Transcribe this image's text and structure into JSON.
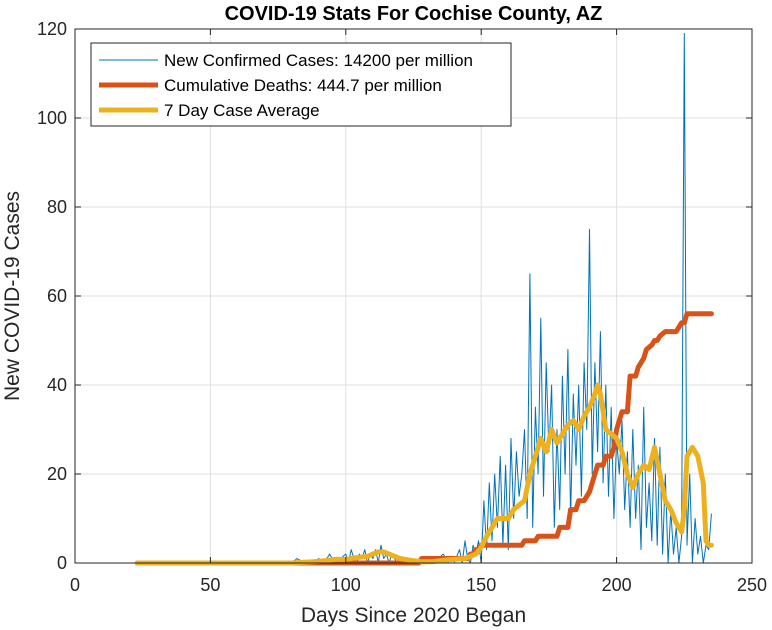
{
  "chart_data": {
    "type": "line",
    "title": "COVID-19 Stats For Cochise County, AZ",
    "xlabel": "Days Since 2020 Began",
    "ylabel": "New COVID-19 Cases",
    "xlim": [
      0,
      250
    ],
    "ylim": [
      0,
      120
    ],
    "xticks": [
      0,
      50,
      100,
      150,
      200,
      250
    ],
    "yticks": [
      0,
      20,
      40,
      60,
      80,
      100,
      120
    ],
    "grid": true,
    "legend_position": "top-left",
    "series": [
      {
        "name": "New Confirmed Cases: 14200 per million",
        "color": "#0072BD",
        "style": "thin",
        "x": [
          23,
          30,
          40,
          50,
          60,
          70,
          80,
          82,
          85,
          88,
          90,
          92,
          94,
          96,
          98,
          100,
          101,
          102,
          103,
          104,
          105,
          106,
          107,
          108,
          109,
          110,
          111,
          112,
          113,
          114,
          115,
          116,
          117,
          118,
          119,
          120,
          122,
          124,
          126,
          128,
          130,
          132,
          134,
          136,
          138,
          140,
          142,
          143,
          144,
          145,
          146,
          147,
          148,
          149,
          150,
          151,
          152,
          153,
          154,
          155,
          156,
          157,
          158,
          159,
          160,
          161,
          162,
          163,
          164,
          165,
          166,
          167,
          168,
          169,
          170,
          171,
          172,
          173,
          174,
          175,
          176,
          177,
          178,
          179,
          180,
          181,
          182,
          183,
          184,
          185,
          186,
          187,
          188,
          189,
          190,
          191,
          192,
          193,
          194,
          195,
          196,
          197,
          198,
          199,
          200,
          201,
          202,
          203,
          204,
          205,
          206,
          207,
          208,
          209,
          210,
          211,
          212,
          213,
          214,
          215,
          216,
          217,
          218,
          219,
          220,
          221,
          222,
          223,
          224,
          225,
          226,
          227,
          228,
          229,
          230,
          231,
          232,
          233,
          234,
          235
        ],
        "values": [
          0,
          0,
          0,
          0,
          0,
          0,
          0,
          1,
          0,
          0,
          1,
          0,
          2,
          0,
          1,
          2,
          0,
          3,
          1,
          0,
          2,
          1,
          3,
          0,
          2,
          1,
          3,
          0,
          4,
          1,
          2,
          0,
          2,
          1,
          0,
          1,
          0,
          1,
          0,
          0,
          1,
          0,
          1,
          2,
          0,
          0,
          3,
          0,
          5,
          1,
          0,
          4,
          2,
          5,
          0,
          14,
          3,
          18,
          5,
          20,
          8,
          24,
          4,
          22,
          3,
          28,
          10,
          25,
          15,
          20,
          30,
          10,
          65,
          8,
          35,
          20,
          55,
          15,
          45,
          25,
          40,
          8,
          30,
          12,
          42,
          20,
          48,
          10,
          38,
          22,
          40,
          15,
          45,
          30,
          75,
          20,
          45,
          25,
          52,
          18,
          40,
          15,
          35,
          10,
          28,
          20,
          32,
          12,
          25,
          8,
          30,
          10,
          22,
          3,
          35,
          8,
          18,
          5,
          28,
          4,
          26,
          2,
          20,
          0,
          12,
          2,
          8,
          0,
          6,
          119,
          4,
          20,
          0,
          10,
          2,
          6,
          0,
          4,
          3,
          11
        ],
        "width": 1
      },
      {
        "name": "Cumulative Deaths: 444.7 per million",
        "color": "#D95319",
        "style": "thick",
        "x": [
          23,
          127,
          128,
          145,
          146,
          147,
          148,
          149,
          150,
          155,
          156,
          165,
          166,
          170,
          171,
          178,
          179,
          182,
          183,
          185,
          186,
          188,
          190,
          192,
          193,
          195,
          196,
          198,
          199,
          200,
          202,
          204,
          205,
          207,
          208,
          210,
          211,
          213,
          214,
          215,
          216,
          218,
          219,
          220,
          222,
          224,
          225,
          226,
          235
        ],
        "values": [
          0,
          0,
          1,
          1,
          2,
          2,
          3,
          3,
          4,
          4,
          4,
          4,
          5,
          5,
          6,
          6,
          8,
          8,
          12,
          12,
          14,
          14,
          16,
          20,
          22,
          22,
          24,
          24,
          26,
          30,
          34,
          34,
          42,
          42,
          44,
          46,
          48,
          49,
          50,
          50,
          51,
          52,
          52,
          52,
          52,
          54,
          54,
          56,
          56
        ],
        "width": 5
      },
      {
        "name": "7 Day Case Average",
        "color": "#EDB120",
        "style": "thick",
        "x": [
          23,
          40,
          60,
          80,
          88,
          92,
          96,
          100,
          104,
          108,
          110,
          112,
          114,
          116,
          118,
          120,
          124,
          128,
          132,
          136,
          140,
          144,
          148,
          150,
          152,
          154,
          156,
          158,
          160,
          162,
          164,
          166,
          168,
          170,
          172,
          174,
          176,
          178,
          180,
          182,
          184,
          186,
          188,
          190,
          192,
          193,
          194,
          196,
          198,
          200,
          202,
          204,
          206,
          208,
          210,
          212,
          214,
          216,
          218,
          220,
          222,
          224,
          225,
          226,
          227,
          228,
          230,
          232,
          233,
          234,
          235
        ],
        "values": [
          0,
          0,
          0,
          0,
          0.3,
          0.5,
          0.8,
          0.8,
          1.2,
          1.5,
          2,
          2.5,
          2.5,
          2,
          1.5,
          1,
          0.6,
          0.3,
          0.3,
          0.6,
          0.8,
          1,
          2,
          3.5,
          6,
          8,
          10,
          10,
          10,
          12,
          13,
          14,
          20,
          24,
          28,
          25,
          30,
          27,
          29,
          31,
          32,
          30,
          33,
          35,
          38,
          40,
          38,
          30,
          29,
          28,
          25,
          20,
          17,
          20,
          22,
          21,
          26,
          20,
          14,
          12,
          9,
          7,
          12,
          24,
          25,
          26,
          24,
          18,
          5,
          4,
          4
        ],
        "width": 5
      }
    ]
  }
}
